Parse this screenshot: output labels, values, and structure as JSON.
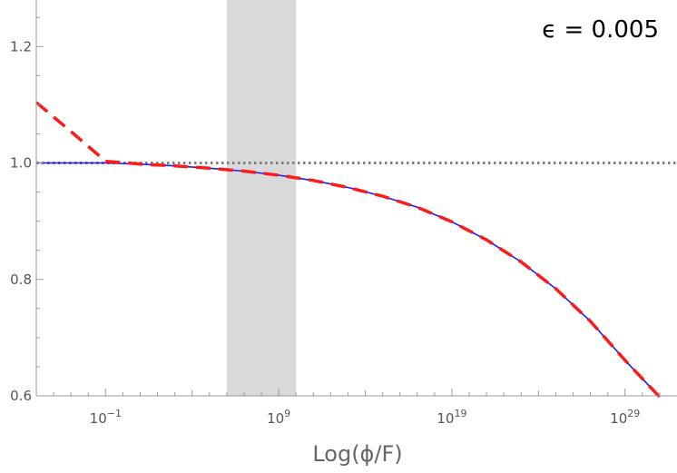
{
  "chart_data": {
    "type": "line",
    "title": "",
    "xlabel": "Log(ϕ/F)",
    "ylabel": "",
    "annotation": "ϵ = 0.005",
    "x_scale": "log",
    "xlim": [
      1e-05,
      1e+32
    ],
    "ylim": [
      0.6,
      1.28
    ],
    "grid": false,
    "legend": "none",
    "x_ticks": [
      {
        "value": 0.1,
        "base": "10",
        "exp": "−1"
      },
      {
        "value": 1000000000.0,
        "base": "10",
        "exp": "9"
      },
      {
        "value": 1e+19,
        "base": "10",
        "exp": "19"
      },
      {
        "value": 1e+29,
        "base": "10",
        "exp": "29"
      }
    ],
    "y_ticks": [
      "0.6",
      "0.8",
      "1.0",
      "1.2"
    ],
    "shaded_band": {
      "x_from": 1000000.0,
      "x_to": 10000000000.0,
      "color": "#d9d9d9"
    },
    "reference_line": {
      "y": 1.0,
      "color": "#7f7f7f",
      "style": "dotted"
    },
    "series": [
      {
        "color": "#1a1aff",
        "style": "solid",
        "x": [
          1e-05,
          0.001,
          0.1,
          10.0,
          1000.0,
          100000.0,
          10000000.0,
          1000000000.0,
          100000000000.0,
          10000000000000.0,
          1000000000000000.0,
          1e+17,
          1e+19,
          1e+21,
          1e+23,
          1e+25,
          1e+27,
          1e+29,
          1e+31
        ],
        "y": [
          1.0,
          1.0,
          1.0,
          0.998,
          0.995,
          0.991,
          0.986,
          0.979,
          0.97,
          0.958,
          0.943,
          0.924,
          0.899,
          0.868,
          0.83,
          0.784,
          0.728,
          0.661,
          0.598
        ]
      },
      {
        "color": "#ff1a1a",
        "style": "dashed",
        "x": [
          1e-05,
          0.001,
          0.1,
          10.0,
          1000.0,
          100000.0,
          10000000.0,
          1000000000.0,
          100000000000.0,
          10000000000000.0,
          1000000000000000.0,
          1e+17,
          1e+19,
          1e+21,
          1e+23,
          1e+25,
          1e+27,
          1e+29,
          1e+31
        ],
        "y": [
          1.104,
          1.054,
          1.003,
          0.998,
          0.995,
          0.991,
          0.986,
          0.979,
          0.97,
          0.958,
          0.943,
          0.924,
          0.899,
          0.868,
          0.83,
          0.784,
          0.728,
          0.661,
          0.598
        ]
      }
    ]
  }
}
